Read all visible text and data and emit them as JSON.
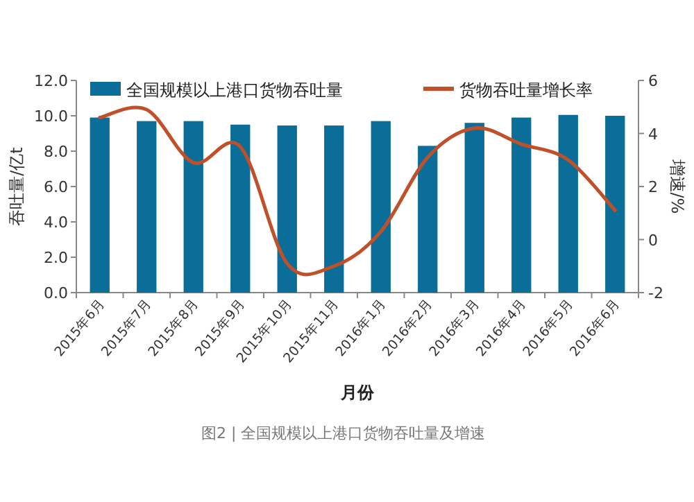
{
  "chart_data": {
    "type": "bar",
    "xlabel": "月份",
    "ylabel": "吞吐量/亿t",
    "y2label": "增速/%",
    "categories": [
      "2015年6月",
      "2015年7月",
      "2015年8月",
      "2015年9月",
      "2015年10月",
      "2015年11月",
      "2016年1月",
      "2016年2月",
      "2016年3月",
      "2016年4月",
      "2016年5月",
      "2016年6月"
    ],
    "series": [
      {
        "name": "全国规模以上港口货物吞吐量",
        "color": "#0b6e99",
        "values": [
          9.9,
          9.7,
          9.7,
          9.5,
          9.45,
          9.45,
          9.7,
          8.3,
          9.6,
          9.9,
          10.05,
          10.0
        ]
      },
      {
        "name": "货物吞吐量增长率",
        "type": "line",
        "axis": "y2",
        "color": "#c0502a",
        "values": [
          4.6,
          4.9,
          2.9,
          3.5,
          -0.9,
          -1.0,
          0.3,
          3.1,
          4.2,
          3.6,
          3.0,
          1.1
        ]
      }
    ],
    "ylim": [
      0,
      12
    ],
    "yticks": [
      {
        "value": 0,
        "label": "0.0"
      },
      {
        "value": 2,
        "label": "2.0"
      },
      {
        "value": 4,
        "label": "4.0"
      },
      {
        "value": 6,
        "label": "6.0"
      },
      {
        "value": 8,
        "label": "8.0"
      },
      {
        "value": 10,
        "label": "10.0"
      },
      {
        "value": 12,
        "label": "12.0"
      }
    ],
    "y2lim": [
      -2,
      6
    ],
    "y2ticks": [
      -2,
      0,
      2,
      4,
      6
    ],
    "legend": "top",
    "grid": false,
    "marker": "none",
    "line_style": "solid",
    "annotations": [
      "图2 | 全国规模以上港口货物吞吐量及增速"
    ]
  }
}
